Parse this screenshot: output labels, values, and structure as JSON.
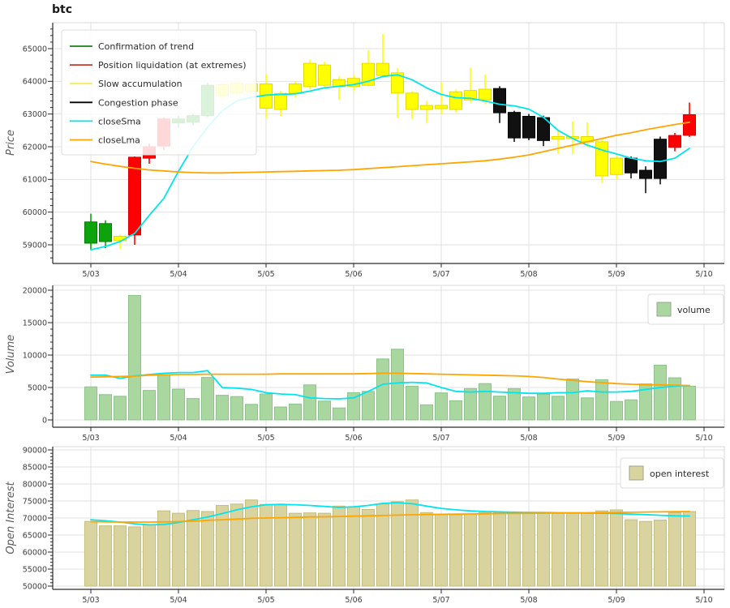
{
  "title": "btc",
  "x_axis": {
    "labels": [
      "5/03",
      "5/04",
      "5/05",
      "5/06",
      "5/07",
      "5/08",
      "5/09",
      "5/10"
    ],
    "candles_per_day": 6
  },
  "colors": {
    "phases": {
      "trend": "#0ca30c",
      "liquidation": "#ff0000",
      "accumulation": "#ffff00",
      "congestion": "#111111"
    },
    "phase_strokes": {
      "trend": "#067a06",
      "liquidation": "#dd0000",
      "accumulation": "#e8d900",
      "congestion": "#000000"
    },
    "sma": "#00e5ee",
    "lma": "#ffa500",
    "volume_bar": "#aad6a0",
    "volume_bar_edge": "#8bc48b",
    "oi_bar": "#d9d3a0",
    "oi_bar_edge": "#c6bd78",
    "grid": "#e2e2e2",
    "spine_dark": "#2a2a2a",
    "spine_light": "#d8d8d8",
    "tick_text": "#3d3d3d",
    "legend_text": "#2b2b2b"
  },
  "chart_data": [
    {
      "type": "candlestick",
      "name": "price",
      "ylabel": "Price",
      "ylim": [
        58400,
        65800
      ],
      "yticks": [
        59000,
        60000,
        61000,
        62000,
        63000,
        64000,
        65000
      ],
      "legend": {
        "position": "upper-left",
        "entries": [
          {
            "label": "Confirmation of trend",
            "color": "#1d7d1d",
            "type": "line"
          },
          {
            "label": "Position liquidation (at extremes)",
            "color": "#c23b2c",
            "type": "line"
          },
          {
            "label": "Slow accumulation",
            "color": "#f6ee4d",
            "type": "line"
          },
          {
            "label": "Congestion phase",
            "color": "#000000",
            "type": "line"
          },
          {
            "label": "closeSma",
            "color": "#00e5ee",
            "type": "line"
          },
          {
            "label": "closeLma",
            "color": "#ffa500",
            "type": "line"
          }
        ]
      },
      "candles": [
        {
          "body": [
            59050,
            59700
          ],
          "low": 58850,
          "high": 59950,
          "phase": "trend"
        },
        {
          "body": [
            59100,
            59650
          ],
          "low": 58900,
          "high": 59750,
          "phase": "trend"
        },
        {
          "body": [
            59130,
            59260
          ],
          "low": 58870,
          "high": 59320,
          "phase": "accumulation"
        },
        {
          "body": [
            59300,
            61680
          ],
          "low": 59000,
          "high": 61700,
          "phase": "liquidation"
        },
        {
          "body": [
            61650,
            62000
          ],
          "low": 61480,
          "high": 62100,
          "phase": "liquidation"
        },
        {
          "body": [
            62020,
            62850
          ],
          "low": 61900,
          "high": 62900,
          "phase": "liquidation"
        },
        {
          "body": [
            62730,
            62850
          ],
          "low": 62580,
          "high": 62950,
          "phase": "trend"
        },
        {
          "body": [
            62750,
            62950
          ],
          "low": 62650,
          "high": 63000,
          "phase": "trend"
        },
        {
          "body": [
            62950,
            63880
          ],
          "low": 62900,
          "high": 63950,
          "phase": "trend"
        },
        {
          "body": [
            63560,
            63900
          ],
          "low": 63450,
          "high": 63950,
          "phase": "accumulation"
        },
        {
          "body": [
            63640,
            63940
          ],
          "low": 63520,
          "high": 63990,
          "phase": "accumulation"
        },
        {
          "body": [
            63700,
            63920
          ],
          "low": 63600,
          "high": 63960,
          "phase": "accumulation"
        },
        {
          "body": [
            63180,
            63920
          ],
          "low": 62890,
          "high": 64210,
          "phase": "accumulation"
        },
        {
          "body": [
            63140,
            63630
          ],
          "low": 62940,
          "high": 63700,
          "phase": "accumulation"
        },
        {
          "body": [
            63630,
            63920
          ],
          "low": 63500,
          "high": 64000,
          "phase": "accumulation"
        },
        {
          "body": [
            63840,
            64550
          ],
          "low": 63750,
          "high": 64670,
          "phase": "accumulation"
        },
        {
          "body": [
            63880,
            64500
          ],
          "low": 63800,
          "high": 64600,
          "phase": "accumulation"
        },
        {
          "body": [
            63840,
            64050
          ],
          "low": 63430,
          "high": 64150,
          "phase": "accumulation"
        },
        {
          "body": [
            63840,
            64090
          ],
          "low": 63700,
          "high": 64200,
          "phase": "accumulation"
        },
        {
          "body": [
            63880,
            64550
          ],
          "low": 63850,
          "high": 64950,
          "phase": "accumulation"
        },
        {
          "body": [
            64180,
            64550
          ],
          "low": 64100,
          "high": 65450,
          "phase": "accumulation"
        },
        {
          "body": [
            63640,
            64260
          ],
          "low": 62890,
          "high": 64400,
          "phase": "accumulation"
        },
        {
          "body": [
            63140,
            63640
          ],
          "low": 62850,
          "high": 63700,
          "phase": "accumulation"
        },
        {
          "body": [
            63140,
            63260
          ],
          "low": 62725,
          "high": 63400,
          "phase": "accumulation"
        },
        {
          "body": [
            63165,
            63265
          ],
          "low": 63000,
          "high": 63970,
          "phase": "accumulation"
        },
        {
          "body": [
            63140,
            63680
          ],
          "low": 63050,
          "high": 63750,
          "phase": "accumulation"
        },
        {
          "body": [
            63430,
            63720
          ],
          "low": 63350,
          "high": 64420,
          "phase": "accumulation"
        },
        {
          "body": [
            63430,
            63760
          ],
          "low": 63300,
          "high": 64215,
          "phase": "accumulation"
        },
        {
          "body": [
            63040,
            63780
          ],
          "low": 62725,
          "high": 63850,
          "phase": "congestion"
        },
        {
          "body": [
            62270,
            63050
          ],
          "low": 62150,
          "high": 63100,
          "phase": "congestion"
        },
        {
          "body": [
            62270,
            62930
          ],
          "low": 62200,
          "high": 63000,
          "phase": "congestion"
        },
        {
          "body": [
            62190,
            62890
          ],
          "low": 62020,
          "high": 62950,
          "phase": "congestion"
        },
        {
          "body": [
            62230,
            62310
          ],
          "low": 61775,
          "high": 62520,
          "phase": "accumulation"
        },
        {
          "body": [
            62250,
            62310
          ],
          "low": 61775,
          "high": 62770,
          "phase": "accumulation"
        },
        {
          "body": [
            62150,
            62310
          ],
          "low": 62000,
          "high": 62745,
          "phase": "accumulation"
        },
        {
          "body": [
            61110,
            62150
          ],
          "low": 60900,
          "high": 62250,
          "phase": "accumulation"
        },
        {
          "body": [
            61150,
            61650
          ],
          "low": 61000,
          "high": 61750,
          "phase": "accumulation"
        },
        {
          "body": [
            61200,
            61650
          ],
          "low": 61030,
          "high": 61700,
          "phase": "congestion"
        },
        {
          "body": [
            61030,
            61280
          ],
          "low": 60580,
          "high": 61400,
          "phase": "congestion"
        },
        {
          "body": [
            61030,
            62230
          ],
          "low": 60850,
          "high": 62310,
          "phase": "congestion"
        },
        {
          "body": [
            61980,
            62345
          ],
          "low": 61860,
          "high": 62420,
          "phase": "liquidation"
        },
        {
          "body": [
            62350,
            62980
          ],
          "low": 62300,
          "high": 63350,
          "phase": "liquidation"
        }
      ],
      "series": [
        {
          "name": "closeSma",
          "color": "#00e5ee",
          "values": [
            58850,
            58950,
            59100,
            59350,
            59900,
            60420,
            61250,
            62000,
            62600,
            63100,
            63400,
            63510,
            63580,
            63600,
            63620,
            63700,
            63800,
            63850,
            63900,
            64000,
            64150,
            64200,
            64050,
            63800,
            63600,
            63500,
            63480,
            63400,
            63300,
            63250,
            63150,
            62900,
            62500,
            62250,
            62050,
            61900,
            61780,
            61650,
            61570,
            61550,
            61650,
            61950
          ]
        },
        {
          "name": "closeLma",
          "color": "#ffa500",
          "values": [
            61550,
            61470,
            61400,
            61340,
            61290,
            61260,
            61230,
            61210,
            61200,
            61200,
            61210,
            61220,
            61230,
            61240,
            61250,
            61260,
            61270,
            61280,
            61300,
            61330,
            61360,
            61390,
            61420,
            61450,
            61480,
            61510,
            61540,
            61570,
            61620,
            61680,
            61750,
            61850,
            61950,
            62050,
            62150,
            62250,
            62350,
            62430,
            62520,
            62600,
            62680,
            62750
          ]
        }
      ]
    },
    {
      "type": "bar",
      "name": "volume",
      "ylabel": "Volume",
      "ylim": [
        0,
        20700
      ],
      "yticks": [
        0,
        5000,
        10000,
        15000,
        20000
      ],
      "legend": {
        "position": "upper-right",
        "entries": [
          {
            "label": "volume",
            "color": "#aad6a0",
            "type": "patch"
          }
        ]
      },
      "values": [
        5100,
        3900,
        3650,
        19200,
        4550,
        7000,
        4750,
        3300,
        6550,
        3800,
        3600,
        2400,
        4000,
        2000,
        2450,
        5400,
        2900,
        1850,
        4200,
        4400,
        9400,
        10900,
        5200,
        2330,
        4170,
        2960,
        4830,
        5600,
        3670,
        4830,
        3540,
        3960,
        3650,
        6300,
        3400,
        6200,
        2850,
        3100,
        5550,
        8450,
        6500,
        5200
      ],
      "series": [
        {
          "name": "volumeSma",
          "color": "#00e5ee",
          "values": [
            6900,
            6900,
            6400,
            6800,
            7000,
            7200,
            7300,
            7300,
            7600,
            5000,
            4900,
            4700,
            4200,
            4000,
            3900,
            3400,
            3300,
            3250,
            3400,
            4400,
            5500,
            5700,
            5800,
            5700,
            5000,
            4400,
            4300,
            4400,
            4300,
            4200,
            4100,
            4100,
            4200,
            4200,
            4500,
            4300,
            4300,
            4400,
            4700,
            5000,
            5200,
            5300
          ]
        },
        {
          "name": "volumeLma",
          "color": "#ffa500",
          "values": [
            6600,
            6650,
            6700,
            6750,
            6900,
            6950,
            7000,
            7000,
            7050,
            7050,
            7050,
            7050,
            7050,
            7100,
            7100,
            7100,
            7100,
            7100,
            7100,
            7150,
            7200,
            7200,
            7150,
            7100,
            7050,
            7000,
            6950,
            6900,
            6850,
            6800,
            6700,
            6550,
            6300,
            6100,
            5900,
            5750,
            5600,
            5500,
            5450,
            5400,
            5350,
            5300
          ]
        }
      ]
    },
    {
      "type": "bar",
      "name": "open_interest",
      "ylabel": "Open Interest",
      "ylim": [
        49000,
        91000
      ],
      "yticks": [
        50000,
        55000,
        60000,
        65000,
        70000,
        75000,
        80000,
        85000,
        90000
      ],
      "legend": {
        "position": "upper-right",
        "entries": [
          {
            "label": "open interest",
            "color": "#d9d3a0",
            "type": "patch"
          }
        ]
      },
      "values": [
        69000,
        67700,
        67700,
        67400,
        68000,
        72100,
        71400,
        72200,
        71900,
        73700,
        74100,
        75300,
        74000,
        73900,
        71400,
        71500,
        71400,
        73500,
        73300,
        72500,
        74100,
        74800,
        75300,
        71600,
        71000,
        71000,
        71100,
        71600,
        71600,
        71600,
        71500,
        71400,
        71400,
        71500,
        71500,
        72100,
        72400,
        69500,
        69000,
        69400,
        71600,
        71900
      ],
      "series": [
        {
          "name": "oiSma",
          "color": "#00e5ee",
          "values": [
            69500,
            69200,
            68800,
            68300,
            68000,
            68100,
            68700,
            69500,
            70300,
            71300,
            72400,
            73300,
            73900,
            74000,
            73900,
            73700,
            73400,
            73100,
            73300,
            73700,
            74300,
            74500,
            74200,
            73500,
            72800,
            72400,
            72100,
            71900,
            71800,
            71700,
            71650,
            71600,
            71550,
            71500,
            71450,
            71400,
            71300,
            71150,
            71000,
            70800,
            70650,
            70600
          ]
        },
        {
          "name": "oiLma",
          "color": "#ffa500",
          "values": [
            68900,
            68850,
            68800,
            68800,
            68800,
            68850,
            68950,
            69100,
            69300,
            69500,
            69700,
            69900,
            70000,
            70100,
            70200,
            70300,
            70350,
            70450,
            70550,
            70650,
            70750,
            70850,
            70950,
            71050,
            71100,
            71150,
            71200,
            71250,
            71300,
            71350,
            71380,
            71420,
            71450,
            71500,
            71550,
            71600,
            71650,
            71700,
            71750,
            71800,
            71850,
            71900
          ]
        }
      ]
    }
  ]
}
